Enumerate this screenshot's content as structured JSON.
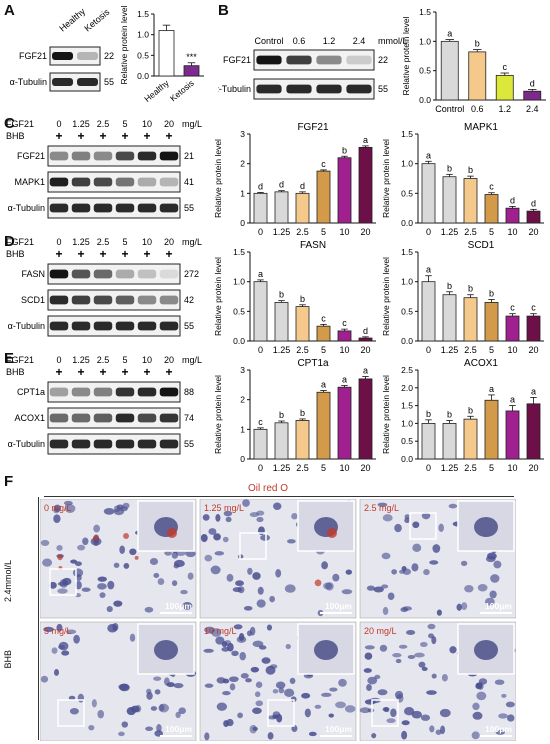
{
  "panels": {
    "A": {
      "letter": "A",
      "lanes": [
        "Healthy",
        "Ketosis"
      ],
      "bands": [
        {
          "name": "FGF21",
          "kda": "22",
          "intensity": [
            1.0,
            0.25
          ]
        },
        {
          "name": "α-Tubulin",
          "kda": "55",
          "intensity": [
            0.9,
            0.9
          ]
        }
      ]
    },
    "B": {
      "letter": "B",
      "lanes": [
        "Control",
        "0.6",
        "1.2",
        "2.4"
      ],
      "unit": "mmol/L",
      "bands": [
        {
          "name": "FGF21",
          "kda": "22",
          "intensity": [
            1.0,
            0.8,
            0.45,
            0.15
          ]
        },
        {
          "name": "α-Tubulin",
          "kda": "55",
          "intensity": [
            0.9,
            0.9,
            0.9,
            0.9
          ]
        }
      ]
    },
    "C": {
      "letter": "C",
      "treat": "FGF21",
      "unit": "mg/L",
      "bhb": "BHB",
      "lanes": [
        "0",
        "1.25",
        "2.5",
        "5",
        "10",
        "20"
      ],
      "bands": [
        {
          "name": "FGF21",
          "kda": "21",
          "intensity": [
            0.45,
            0.5,
            0.45,
            0.75,
            0.9,
            1.0
          ]
        },
        {
          "name": "MAPK1",
          "kda": "41",
          "intensity": [
            0.95,
            0.8,
            0.75,
            0.55,
            0.3,
            0.25
          ]
        },
        {
          "name": "α-Tubulin",
          "kda": "55",
          "intensity": [
            0.9,
            0.9,
            0.9,
            0.9,
            0.9,
            0.9
          ]
        }
      ]
    },
    "D": {
      "letter": "D",
      "treat": "FGF21",
      "unit": "mg/L",
      "bhb": "BHB",
      "lanes": [
        "0",
        "1.25",
        "2.5",
        "5",
        "10",
        "20"
      ],
      "bands": [
        {
          "name": "FASN",
          "kda": "272",
          "intensity": [
            1.0,
            0.7,
            0.6,
            0.3,
            0.2,
            0.08
          ]
        },
        {
          "name": "SCD1",
          "kda": "42",
          "intensity": [
            0.9,
            0.8,
            0.75,
            0.65,
            0.45,
            0.45
          ]
        },
        {
          "name": "α-Tubulin",
          "kda": "55",
          "intensity": [
            0.9,
            0.9,
            0.9,
            0.9,
            0.9,
            0.9
          ]
        }
      ]
    },
    "E": {
      "letter": "E",
      "treat": "FGF21",
      "unit": "mg/L",
      "bhb": "BHB",
      "lanes": [
        "0",
        "1.25",
        "2.5",
        "5",
        "10",
        "20"
      ],
      "bands": [
        {
          "name": "CPT1a",
          "kda": "88",
          "intensity": [
            0.35,
            0.45,
            0.5,
            0.85,
            0.9,
            1.0
          ]
        },
        {
          "name": "ACOX1",
          "kda": "74",
          "intensity": [
            0.6,
            0.6,
            0.65,
            0.9,
            0.75,
            0.85
          ]
        },
        {
          "name": "α-Tubulin",
          "kda": "55",
          "intensity": [
            0.9,
            0.9,
            0.9,
            0.9,
            0.9,
            0.9
          ]
        }
      ]
    },
    "F": {
      "letter": "F",
      "title": "Oil red O",
      "row_label_top": "2.4mmol/L",
      "row_label_bottom": "BHB",
      "cells": [
        {
          "label": "0 mg/L",
          "scale": "100μm",
          "density": 0.55
        },
        {
          "label": "1.25 mg/L",
          "scale": "100μm",
          "density": 0.35
        },
        {
          "label": "2.5 mg/L",
          "scale": "100μm",
          "density": 0.3
        },
        {
          "label": "5 mg/L",
          "scale": "100μm",
          "density": 0.4
        },
        {
          "label": "10 mg/L",
          "scale": "100μm",
          "density": 0.8
        },
        {
          "label": "20 mg/L",
          "scale": "100μm",
          "density": 0.7
        }
      ]
    }
  },
  "chart_data": [
    {
      "id": "A",
      "type": "bar",
      "ylabel": "Relative protein level",
      "categories": [
        "Healthy",
        "Ketosis"
      ],
      "values": [
        1.1,
        0.25
      ],
      "errors": [
        0.13,
        0.07
      ],
      "colors": [
        "#ffffff",
        "#7d2a8e"
      ],
      "annotations": [
        "",
        "***"
      ],
      "ylim": [
        0,
        1.5
      ],
      "yticks": [
        0.0,
        0.5,
        1.0,
        1.5
      ]
    },
    {
      "id": "B",
      "type": "bar",
      "ylabel": "Relative protein level",
      "categories": [
        "Control",
        "0.6",
        "1.2",
        "2.4"
      ],
      "values": [
        1.0,
        0.82,
        0.42,
        0.15
      ],
      "errors": [
        0.03,
        0.04,
        0.04,
        0.03
      ],
      "colors": [
        "#d9d9d9",
        "#f5c98b",
        "#dbe83a",
        "#7b2a8a"
      ],
      "annotations": [
        "a",
        "b",
        "c",
        "d"
      ],
      "ylim": [
        0,
        1.5
      ],
      "yticks": [
        0.0,
        0.5,
        1.0,
        1.5
      ]
    },
    {
      "id": "C1",
      "type": "bar",
      "title": "FGF21",
      "ylabel": "Relative protein level",
      "categories": [
        "0",
        "1.25",
        "2.5",
        "5",
        "10",
        "20"
      ],
      "values": [
        1.0,
        1.05,
        1.0,
        1.75,
        2.2,
        2.55
      ],
      "errors": [
        0.03,
        0.04,
        0.05,
        0.04,
        0.05,
        0.05
      ],
      "colors": [
        "#d9d9d9",
        "#d9d9d9",
        "#f5c98b",
        "#d39a4a",
        "#a0208f",
        "#6d1048"
      ],
      "annotations": [
        "d",
        "d",
        "d",
        "c",
        "b",
        "a"
      ],
      "ylim": [
        0,
        3
      ],
      "yticks": [
        0,
        1,
        2,
        3
      ]
    },
    {
      "id": "C2",
      "type": "bar",
      "title": "MAPK1",
      "ylabel": "Relative protein level",
      "categories": [
        "0",
        "1.25",
        "2.5",
        "5",
        "10",
        "20"
      ],
      "values": [
        1.0,
        0.78,
        0.75,
        0.48,
        0.25,
        0.2
      ],
      "errors": [
        0.04,
        0.04,
        0.04,
        0.03,
        0.03,
        0.03
      ],
      "colors": [
        "#d9d9d9",
        "#d9d9d9",
        "#f5c98b",
        "#d39a4a",
        "#a0208f",
        "#6d1048"
      ],
      "annotations": [
        "a",
        "b",
        "b",
        "c",
        "d",
        "d"
      ],
      "ylim": [
        0,
        1.5
      ],
      "yticks": [
        0.0,
        0.5,
        1.0,
        1.5
      ]
    },
    {
      "id": "D1",
      "type": "bar",
      "title": "FASN",
      "ylabel": "Relative protein level",
      "categories": [
        "0",
        "1.25",
        "2.5",
        "5",
        "10",
        "20"
      ],
      "values": [
        1.0,
        0.65,
        0.58,
        0.25,
        0.17,
        0.05
      ],
      "errors": [
        0.03,
        0.03,
        0.03,
        0.03,
        0.03,
        0.02
      ],
      "colors": [
        "#d9d9d9",
        "#d9d9d9",
        "#f5c98b",
        "#d39a4a",
        "#a0208f",
        "#6d1048"
      ],
      "annotations": [
        "a",
        "b",
        "b",
        "c",
        "c",
        "d"
      ],
      "ylim": [
        0,
        1.5
      ],
      "yticks": [
        0.0,
        0.5,
        1.0,
        1.5
      ]
    },
    {
      "id": "D2",
      "type": "bar",
      "title": "SCD1",
      "ylabel": "Relative protein level",
      "categories": [
        "0",
        "1.25",
        "2.5",
        "5",
        "10",
        "20"
      ],
      "values": [
        1.0,
        0.78,
        0.73,
        0.65,
        0.42,
        0.42
      ],
      "errors": [
        0.1,
        0.05,
        0.05,
        0.05,
        0.04,
        0.04
      ],
      "colors": [
        "#d9d9d9",
        "#d9d9d9",
        "#f5c98b",
        "#d39a4a",
        "#a0208f",
        "#6d1048"
      ],
      "annotations": [
        "a",
        "b",
        "b",
        "b",
        "c",
        "c"
      ],
      "ylim": [
        0,
        1.5
      ],
      "yticks": [
        0.0,
        0.5,
        1.0,
        1.5
      ]
    },
    {
      "id": "E1",
      "type": "bar",
      "title": "CPT1a",
      "ylabel": "Relative protein level",
      "categories": [
        "0",
        "1.25",
        "2.5",
        "5",
        "10",
        "20"
      ],
      "values": [
        1.0,
        1.22,
        1.3,
        2.25,
        2.42,
        2.7
      ],
      "errors": [
        0.05,
        0.06,
        0.05,
        0.06,
        0.06,
        0.08
      ],
      "colors": [
        "#d9d9d9",
        "#d9d9d9",
        "#f5c98b",
        "#d39a4a",
        "#a0208f",
        "#6d1048"
      ],
      "annotations": [
        "c",
        "b",
        "b",
        "a",
        "a",
        "a"
      ],
      "ylim": [
        0,
        3
      ],
      "yticks": [
        0,
        1,
        2,
        3
      ]
    },
    {
      "id": "E2",
      "type": "bar",
      "title": "ACOX1",
      "ylabel": "Relative protein level",
      "categories": [
        "0",
        "1.25",
        "2.5",
        "5",
        "10",
        "20"
      ],
      "values": [
        1.0,
        1.0,
        1.12,
        1.65,
        1.35,
        1.55
      ],
      "errors": [
        0.1,
        0.08,
        0.08,
        0.15,
        0.15,
        0.18
      ],
      "colors": [
        "#d9d9d9",
        "#d9d9d9",
        "#f5c98b",
        "#d39a4a",
        "#a0208f",
        "#6d1048"
      ],
      "annotations": [
        "b",
        "b",
        "b",
        "a",
        "a",
        "a"
      ],
      "ylim": [
        0,
        2.5
      ],
      "yticks": [
        0.0,
        0.5,
        1.0,
        1.5,
        2.0,
        2.5
      ]
    }
  ]
}
